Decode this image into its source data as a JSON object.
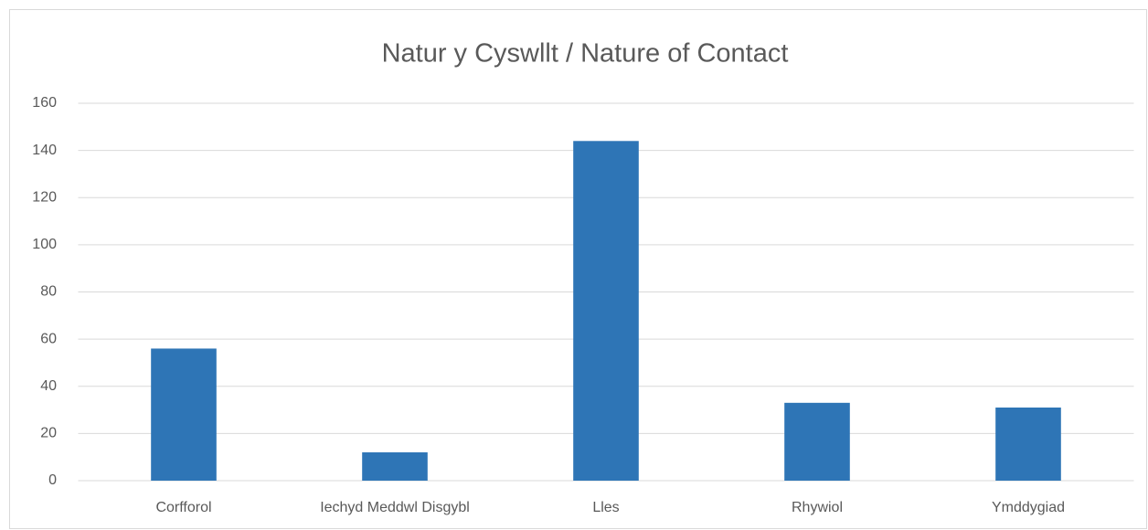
{
  "chart_data": {
    "type": "bar",
    "title": "Natur y Cyswllt / Nature of Contact",
    "categories": [
      "Corfforol",
      "Iechyd Meddwl Disgybl",
      "Lles",
      "Rhywiol",
      "Ymddygiad"
    ],
    "values": [
      56,
      12,
      144,
      33,
      31
    ],
    "color": "#2e75b6",
    "ylim": [
      0,
      160
    ],
    "yticks": [
      0,
      20,
      40,
      60,
      80,
      100,
      120,
      140,
      160
    ],
    "grid": true
  }
}
